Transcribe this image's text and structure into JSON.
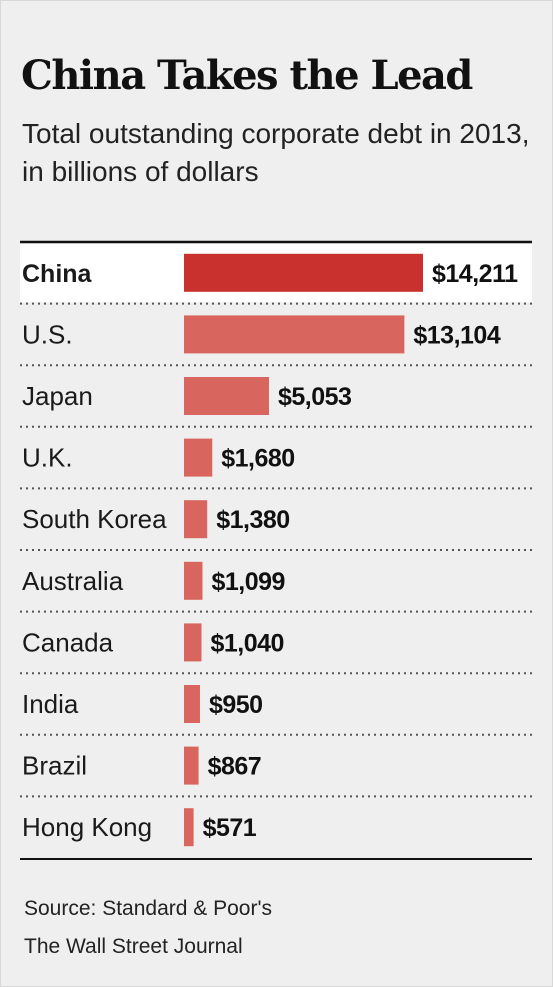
{
  "header": {
    "title": "China Takes the Lead",
    "subtitle": "Total outstanding corporate debt in 2013, in billions of dollars"
  },
  "chart_data": {
    "type": "bar",
    "orientation": "horizontal",
    "title": "China Takes the Lead",
    "subtitle": "Total outstanding corporate debt in 2013, in billions of dollars",
    "categories": [
      "China",
      "U.S.",
      "Japan",
      "U.K.",
      "South Korea",
      "Australia",
      "Canada",
      "India",
      "Brazil",
      "Hong Kong"
    ],
    "values": [
      14211,
      13104,
      5053,
      1680,
      1380,
      1099,
      1040,
      950,
      867,
      571
    ],
    "value_labels": [
      "$14,211",
      "$13,104",
      "$5,053",
      "$1,680",
      "$1,380",
      "$1,099",
      "$1,040",
      "$950",
      "$867",
      "$571"
    ],
    "highlight_index": 0,
    "highlight_color": "#c8312d",
    "bar_color": "#d9665e",
    "xlim": [
      0,
      14211
    ],
    "grid": false
  },
  "footer": {
    "source": "Source: Standard & Poor's",
    "credit": "The Wall Street Journal"
  }
}
